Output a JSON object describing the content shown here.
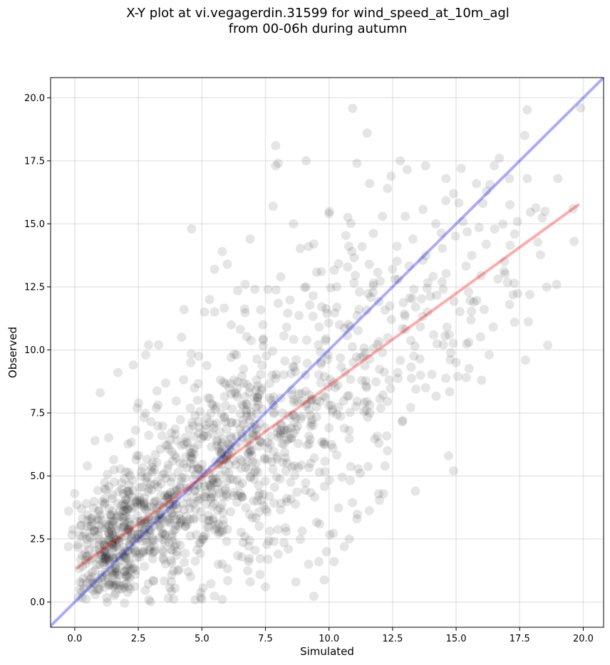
{
  "chart_data": {
    "type": "scatter",
    "title_line1": "X-Y plot at vi.vegagerdin.31599 for wind_speed_at_10m_agl",
    "title_line2": "from 00-06h during autumn",
    "xlabel": "Simulated",
    "ylabel": "Observed",
    "xlim": [
      -0.95,
      20.8
    ],
    "ylim": [
      -1.0,
      20.8
    ],
    "xticks": [
      0.0,
      2.5,
      5.0,
      7.5,
      10.0,
      12.5,
      15.0,
      17.5,
      20.0
    ],
    "xtick_labels": [
      "0.0",
      "2.5",
      "5.0",
      "7.5",
      "10.0",
      "12.5",
      "15.0",
      "17.5",
      "20.0"
    ],
    "yticks": [
      0.0,
      2.5,
      5.0,
      7.5,
      10.0,
      12.5,
      15.0,
      17.5,
      20.0
    ],
    "ytick_labels": [
      "0.0",
      "2.5",
      "5.0",
      "7.5",
      "10.0",
      "12.5",
      "15.0",
      "17.5",
      "20.0"
    ],
    "grid": true,
    "point_color": "#000000",
    "point_opacity": 0.1,
    "identity_line": {
      "color": "#0000ff",
      "opacity": 0.33
    },
    "fit_line": {
      "color": "#ff0000",
      "opacity": 0.33,
      "x": [
        0.1,
        19.8
      ],
      "y": [
        1.35,
        15.75
      ]
    },
    "outlier_points": [
      [
        0.2,
        0.5
      ],
      [
        0.3,
        2.6
      ],
      [
        0.5,
        5.4
      ],
      [
        0.8,
        6.4
      ],
      [
        1.0,
        8.3
      ],
      [
        1.7,
        9.1
      ],
      [
        2.3,
        9.4
      ],
      [
        2.9,
        10.2
      ],
      [
        3.3,
        10.2
      ],
      [
        4.2,
        10.5
      ],
      [
        4.3,
        11.6
      ],
      [
        4.6,
        14.8
      ],
      [
        5.1,
        11.5
      ],
      [
        5.3,
        12.0
      ],
      [
        5.5,
        13.2
      ],
      [
        5.8,
        13.9
      ],
      [
        6.0,
        13.4
      ],
      [
        6.7,
        12.6
      ],
      [
        6.9,
        14.4
      ],
      [
        7.4,
        11.0
      ],
      [
        7.6,
        12.4
      ],
      [
        7.8,
        15.7
      ],
      [
        7.9,
        17.3
      ],
      [
        7.9,
        18.1
      ],
      [
        8.0,
        17.4
      ],
      [
        8.1,
        12.9
      ],
      [
        8.6,
        15.0
      ],
      [
        9.1,
        17.5
      ],
      [
        9.2,
        14.1
      ],
      [
        9.4,
        14.2
      ],
      [
        9.7,
        13.1
      ],
      [
        10.0,
        15.4
      ],
      [
        10.3,
        12.5
      ],
      [
        10.9,
        13.9
      ],
      [
        11.1,
        17.4
      ],
      [
        11.2,
        12.3
      ],
      [
        11.3,
        14.1
      ],
      [
        11.5,
        18.6
      ],
      [
        11.6,
        16.6
      ],
      [
        12.1,
        15.3
      ],
      [
        12.3,
        16.4
      ],
      [
        12.5,
        13.2
      ],
      [
        12.8,
        17.5
      ],
      [
        13.0,
        15.3
      ],
      [
        13.3,
        14.4
      ],
      [
        13.8,
        17.3
      ],
      [
        14.2,
        15.0
      ],
      [
        14.6,
        16.8
      ],
      [
        14.9,
        16.2
      ],
      [
        15.2,
        17.2
      ],
      [
        15.8,
        16.6
      ],
      [
        16.2,
        16.3
      ],
      [
        16.5,
        17.3
      ],
      [
        16.7,
        17.6
      ],
      [
        17.1,
        16.8
      ],
      [
        17.7,
        18.5
      ],
      [
        17.8,
        16.8
      ],
      [
        19.0,
        16.8
      ],
      [
        19.9,
        19.6
      ],
      [
        19.6,
        15.6
      ],
      [
        18.5,
        15.5
      ],
      [
        17.9,
        12.2
      ],
      [
        17.3,
        11.1
      ],
      [
        16.0,
        8.8
      ],
      [
        15.4,
        8.9
      ],
      [
        14.9,
        5.2
      ],
      [
        14.7,
        5.8
      ],
      [
        13.4,
        4.4
      ],
      [
        12.3,
        6.0
      ],
      [
        12.2,
        5.4
      ],
      [
        11.6,
        7.5
      ],
      [
        10.6,
        2.2
      ],
      [
        10.8,
        2.5
      ],
      [
        11.1,
        3.3
      ],
      [
        10.2,
        1.6
      ],
      [
        9.9,
        2.0
      ],
      [
        9.6,
        1.6
      ],
      [
        9.2,
        1.5
      ],
      [
        8.7,
        0.8
      ],
      [
        8.4,
        2.1
      ],
      [
        8.0,
        1.9
      ],
      [
        7.5,
        0.6
      ],
      [
        7.6,
        1.7
      ],
      [
        5.8,
        0.1
      ],
      [
        6.9,
        0.8
      ],
      [
        12.9,
        7.2
      ],
      [
        13.8,
        8.5
      ],
      [
        14.5,
        10.2
      ],
      [
        15.5,
        10.3
      ],
      [
        16.3,
        9.8
      ],
      [
        17.1,
        11.8
      ],
      [
        15.7,
        11.9
      ],
      [
        13.6,
        9.0
      ],
      [
        12.7,
        9.1
      ],
      [
        15.0,
        9.5
      ],
      [
        16.9,
        13.5
      ],
      [
        17.3,
        14.6
      ]
    ],
    "cluster_spec": [
      {
        "cx": 1.3,
        "cy": 2.1,
        "sx": 0.7,
        "sy": 1.2,
        "n": 260
      },
      {
        "cx": 3.0,
        "cy": 3.4,
        "sx": 1.0,
        "sy": 1.7,
        "n": 300
      },
      {
        "cx": 5.3,
        "cy": 5.0,
        "sx": 1.2,
        "sy": 2.0,
        "n": 300
      },
      {
        "cx": 7.6,
        "cy": 6.4,
        "sx": 1.3,
        "sy": 2.3,
        "n": 220
      },
      {
        "cx": 10.3,
        "cy": 8.4,
        "sx": 1.5,
        "sy": 2.6,
        "n": 160
      },
      {
        "cx": 13.4,
        "cy": 11.3,
        "sx": 1.6,
        "sy": 2.6,
        "n": 90
      },
      {
        "cx": 16.3,
        "cy": 13.3,
        "sx": 1.4,
        "sy": 2.3,
        "n": 40
      }
    ]
  }
}
